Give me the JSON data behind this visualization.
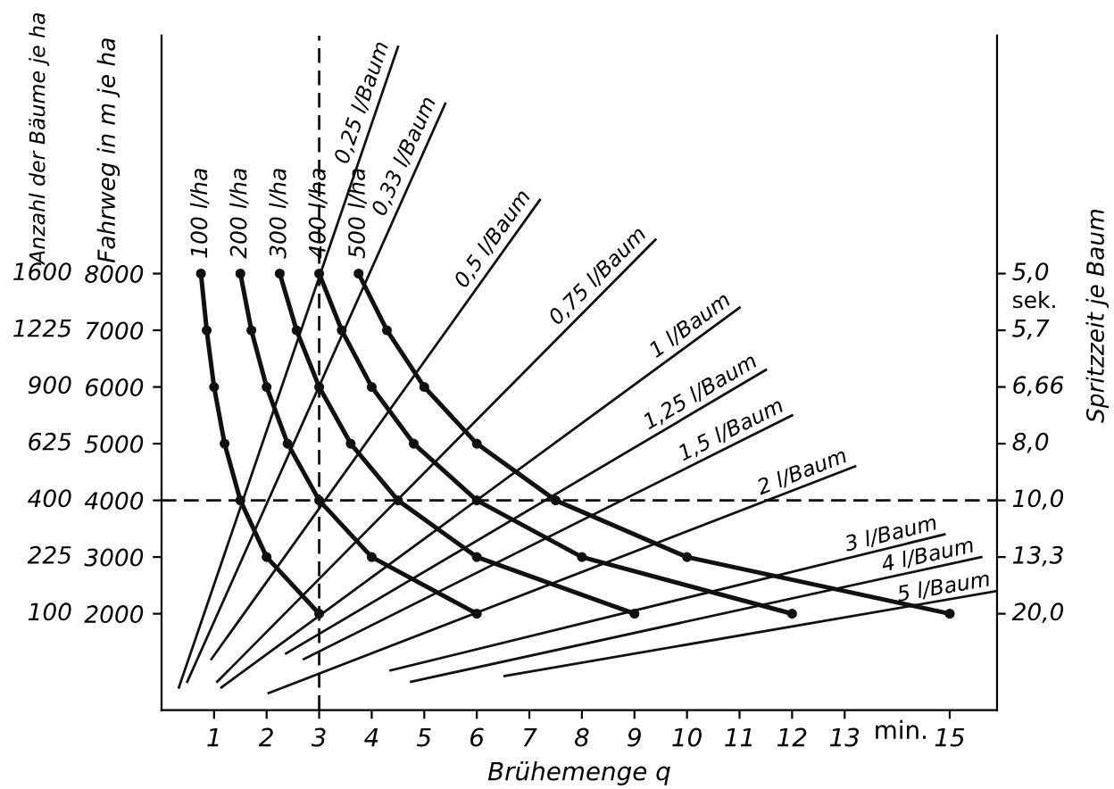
{
  "chart_data": {
    "type": "line",
    "xlabel": "Brühemenge q",
    "ylabel": "Fahrweg in m je ha",
    "y2label": "Spritzzeit je Baum",
    "annotations": [
      "Anzahl der Bäume je ha",
      "100",
      "225",
      "400",
      "625",
      "900",
      "1225",
      "1600",
      "20,0",
      "13,3",
      "10,0",
      "8,0",
      "6,66",
      "5,7",
      "5,0",
      "sek.",
      "min."
    ],
    "xlim": [
      0,
      15.9
    ],
    "xticks": [
      1,
      2,
      3,
      4,
      5,
      6,
      7,
      8,
      9,
      10,
      11,
      12,
      13,
      15
    ],
    "ylim": [
      300,
      12200
    ],
    "yticks": [
      2000,
      3000,
      4000,
      5000,
      6000,
      7000,
      8000
    ],
    "grid": false,
    "legend": false,
    "ref_lines": [
      {
        "axis": "x",
        "value": 3,
        "line_style": "dashed",
        "color": "#111111"
      },
      {
        "axis": "y",
        "value": 4000,
        "line_style": "dashed",
        "color": "#111111"
      }
    ],
    "series": [
      {
        "name": "100 l/ha",
        "color": "#111111",
        "marker": "circle",
        "x": [
          0.75,
          0.86,
          1,
          1.2,
          1.5,
          2,
          3
        ],
        "values": [
          8000,
          7000,
          6000,
          5000,
          4000,
          3000,
          2000
        ]
      },
      {
        "name": "200 l/ha",
        "color": "#111111",
        "marker": "circle",
        "x": [
          1.5,
          1.71,
          2,
          2.4,
          3,
          4,
          6
        ],
        "values": [
          8000,
          7000,
          6000,
          5000,
          4000,
          3000,
          2000
        ]
      },
      {
        "name": "300 l/ha",
        "color": "#111111",
        "marker": "circle",
        "x": [
          2.25,
          2.57,
          3,
          3.6,
          4.5,
          6,
          9
        ],
        "values": [
          8000,
          7000,
          6000,
          5000,
          4000,
          3000,
          2000
        ]
      },
      {
        "name": "400 l/ha",
        "color": "#111111",
        "marker": "circle",
        "x": [
          3,
          3.43,
          4,
          4.8,
          6,
          8,
          12
        ],
        "values": [
          8000,
          7000,
          6000,
          5000,
          4000,
          3000,
          2000
        ]
      },
      {
        "name": "500 l/ha",
        "color": "#111111",
        "marker": "circle",
        "x": [
          3.75,
          4.29,
          5,
          6,
          7.5,
          10,
          15
        ],
        "values": [
          8000,
          7000,
          6000,
          5000,
          4000,
          3000,
          2000
        ]
      },
      {
        "name": "0,25 l/Baum",
        "color": "#111111",
        "marker": "none",
        "x": [
          0.33,
          4.5
        ],
        "values": [
          700,
          12000
        ]
      },
      {
        "name": "0,33 l/Baum",
        "color": "#111111",
        "marker": "none",
        "x": [
          0.49,
          5.4
        ],
        "values": [
          800,
          11000
        ]
      },
      {
        "name": "0,5 l/Baum",
        "color": "#111111",
        "marker": "none",
        "x": [
          0.95,
          7.2
        ],
        "values": [
          1200,
          9300
        ]
      },
      {
        "name": "0,75 l/Baum",
        "color": "#111111",
        "marker": "none",
        "x": [
          1.06,
          9.4
        ],
        "values": [
          800,
          8600
        ]
      },
      {
        "name": "1 l/Baum",
        "color": "#111111",
        "marker": "none",
        "x": [
          1.14,
          11
        ],
        "values": [
          700,
          7400
        ]
      },
      {
        "name": "1,25 l/Baum",
        "color": "#111111",
        "marker": "none",
        "x": [
          2.37,
          11.5
        ],
        "values": [
          1300,
          6300
        ]
      },
      {
        "name": "1,5 l/Baum",
        "color": "#111111",
        "marker": "none",
        "x": [
          2.71,
          12
        ],
        "values": [
          1200,
          5500
        ]
      },
      {
        "name": "2 l/Baum",
        "color": "#111111",
        "marker": "none",
        "x": [
          2.04,
          13.2
        ],
        "values": [
          600,
          4600
        ]
      },
      {
        "name": "3 l/Baum",
        "color": "#111111",
        "marker": "none",
        "x": [
          4.36,
          14.9
        ],
        "values": [
          1000,
          3400
        ]
      },
      {
        "name": "4 l/Baum",
        "color": "#111111",
        "marker": "none",
        "x": [
          4.75,
          15.6
        ],
        "values": [
          800,
          3000
        ]
      },
      {
        "name": "5 l/Baum",
        "color": "#111111",
        "marker": "none",
        "x": [
          6.53,
          15.9
        ],
        "values": [
          900,
          2400
        ]
      }
    ]
  }
}
